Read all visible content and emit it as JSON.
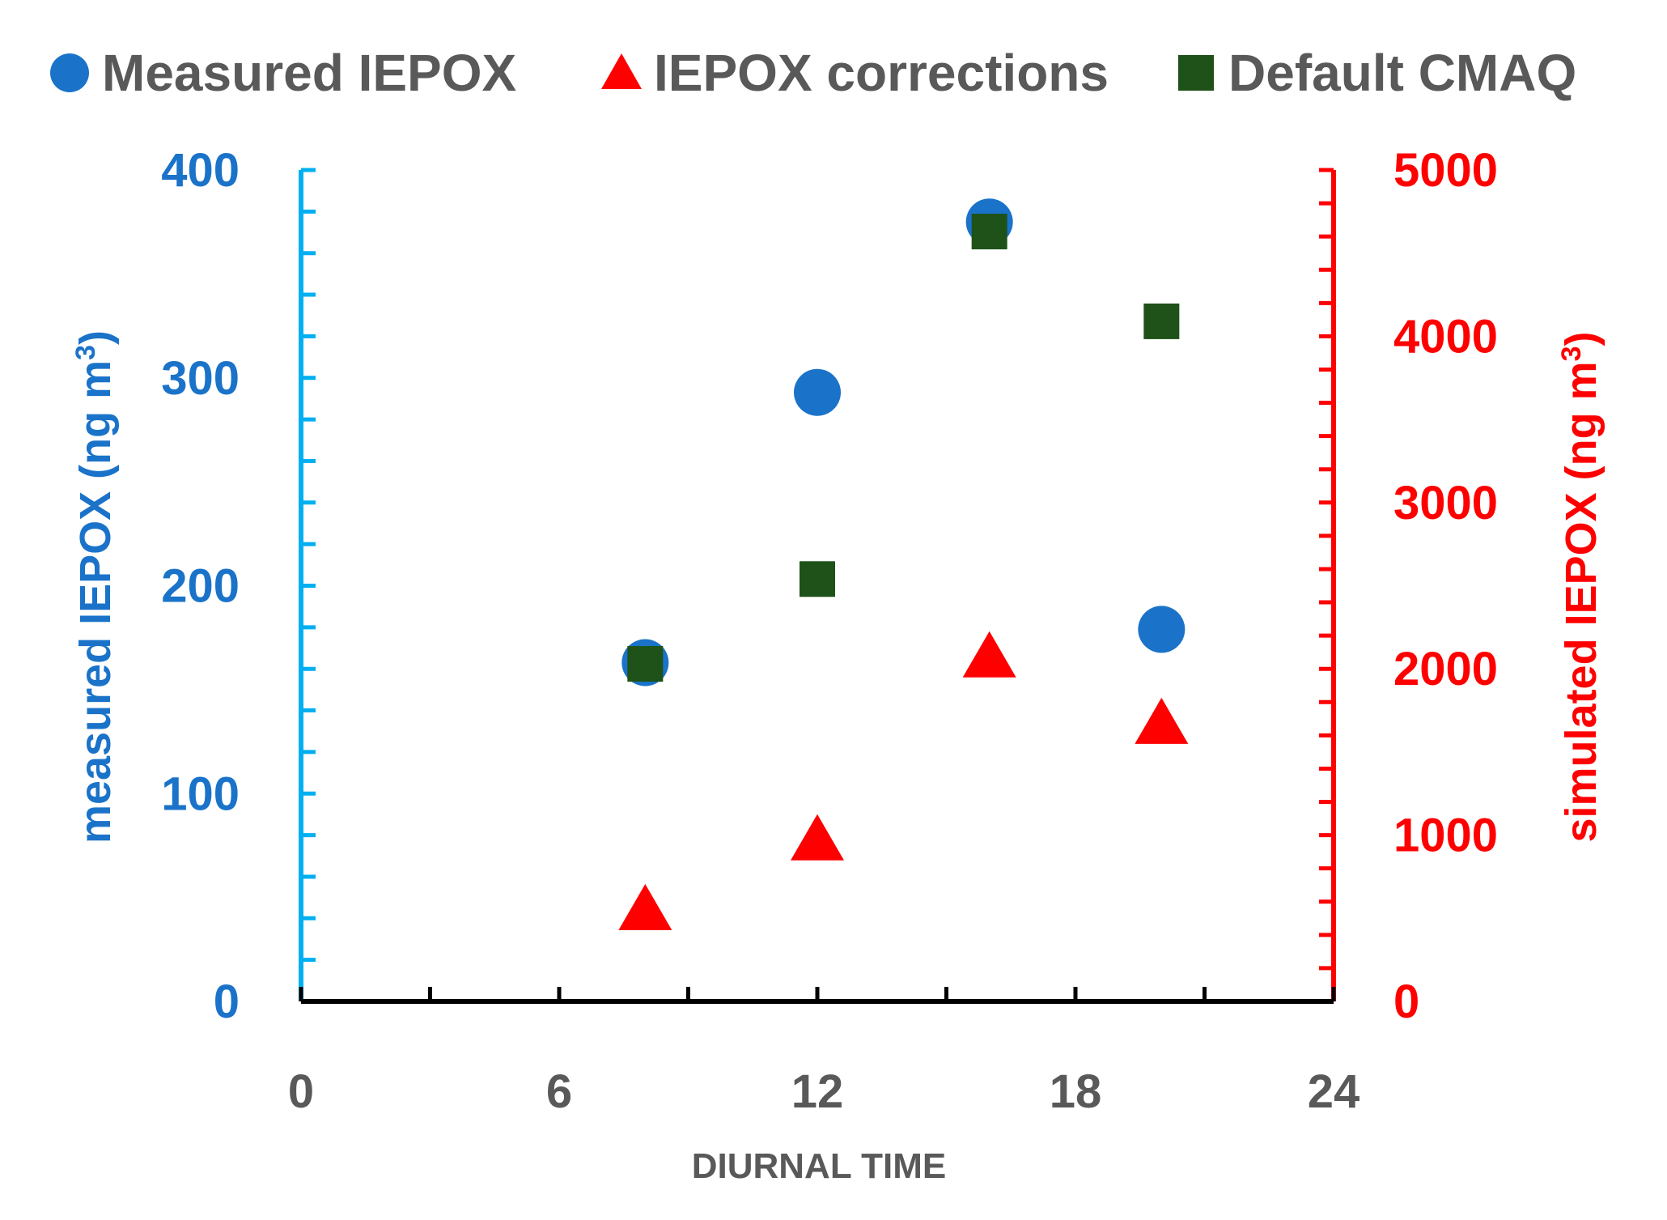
{
  "legend": [
    {
      "label": "Measured IEPOX",
      "marker": "circle",
      "color": "#1a73c9"
    },
    {
      "label": "IEPOX corrections",
      "marker": "triangle",
      "color": "#ff0000"
    },
    {
      "label": "Default CMAQ",
      "marker": "square",
      "color": "#1e5218"
    }
  ],
  "chart_data": {
    "type": "scatter",
    "legend_position": "top",
    "grid": false,
    "x": {
      "label": "DIURNAL TIME",
      "range": [
        0,
        24
      ],
      "ticks": [
        "0",
        "6",
        "12",
        "18",
        "24"
      ],
      "color": "#595959"
    },
    "y_left": {
      "label": "measured IEPOX (ng m",
      "label_sup": "3",
      "label_end": ")",
      "range": [
        0,
        400
      ],
      "ticks": [
        "0",
        "100",
        "200",
        "300",
        "400"
      ],
      "color": "#1a73c9",
      "axis_color": "#00b0f0"
    },
    "y_right": {
      "label": "simulated IEPOX (ng m",
      "label_sup": "3",
      "label_end": ")",
      "range": [
        0,
        5000
      ],
      "ticks": [
        "0",
        "1000",
        "2000",
        "3000",
        "4000",
        "5000"
      ],
      "color": "#ff0000",
      "axis_color": "#ff0000"
    },
    "series": [
      {
        "name": "Measured IEPOX",
        "axis": "left",
        "marker": "circle",
        "color": "#1a73c9",
        "points": [
          [
            8,
            163
          ],
          [
            12,
            293
          ],
          [
            16,
            375
          ],
          [
            20,
            179
          ]
        ]
      },
      {
        "name": "IEPOX corrections",
        "axis": "right",
        "marker": "triangle",
        "color": "#ff0000",
        "points": [
          [
            8,
            560
          ],
          [
            12,
            980
          ],
          [
            16,
            2080
          ],
          [
            20,
            1680
          ]
        ]
      },
      {
        "name": "Default CMAQ",
        "axis": "right",
        "marker": "square",
        "color": "#1e5218",
        "points": [
          [
            8,
            2030
          ],
          [
            12,
            2540
          ],
          [
            16,
            4630
          ],
          [
            20,
            4090
          ]
        ]
      }
    ]
  }
}
